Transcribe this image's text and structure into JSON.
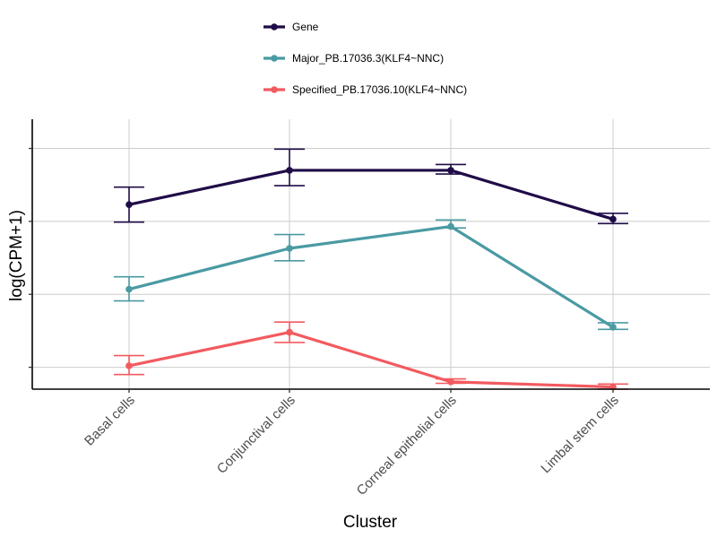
{
  "chart_data": {
    "type": "line",
    "xlabel": "Cluster",
    "ylabel": "log(CPM+1)",
    "ylim": [
      0.2,
      3.9
    ],
    "ytick_values": [
      0.5,
      1.5,
      2.5,
      3.5
    ],
    "y_tick_labels_shown": false,
    "grid": true,
    "legend_position": "top",
    "categories": [
      "Basal cells",
      "Conjunctival cells",
      "Corneal epithelial cells",
      "Limbal stem cells"
    ],
    "series": [
      {
        "name": "Gene",
        "color": "#1f0c47",
        "values": [
          2.73,
          3.2,
          3.2,
          2.53
        ],
        "err_low": [
          2.49,
          2.99,
          3.15,
          2.47
        ],
        "err_high": [
          2.97,
          3.49,
          3.28,
          2.61
        ]
      },
      {
        "name": "Major_PB.17036.3(KLF4~NNC)",
        "color": "#4a9aa3",
        "values": [
          1.57,
          2.13,
          2.43,
          1.05
        ],
        "err_low": [
          1.41,
          1.96,
          2.41,
          1.02
        ],
        "err_high": [
          1.74,
          2.32,
          2.52,
          1.11
        ]
      },
      {
        "name": "Specified_PB.17036.10(KLF4~NNC)",
        "color": "#f25a5f",
        "values": [
          0.52,
          0.98,
          0.3,
          0.23
        ],
        "err_low": [
          0.4,
          0.84,
          0.28,
          0.2
        ],
        "err_high": [
          0.66,
          1.12,
          0.34,
          0.27
        ]
      }
    ]
  }
}
